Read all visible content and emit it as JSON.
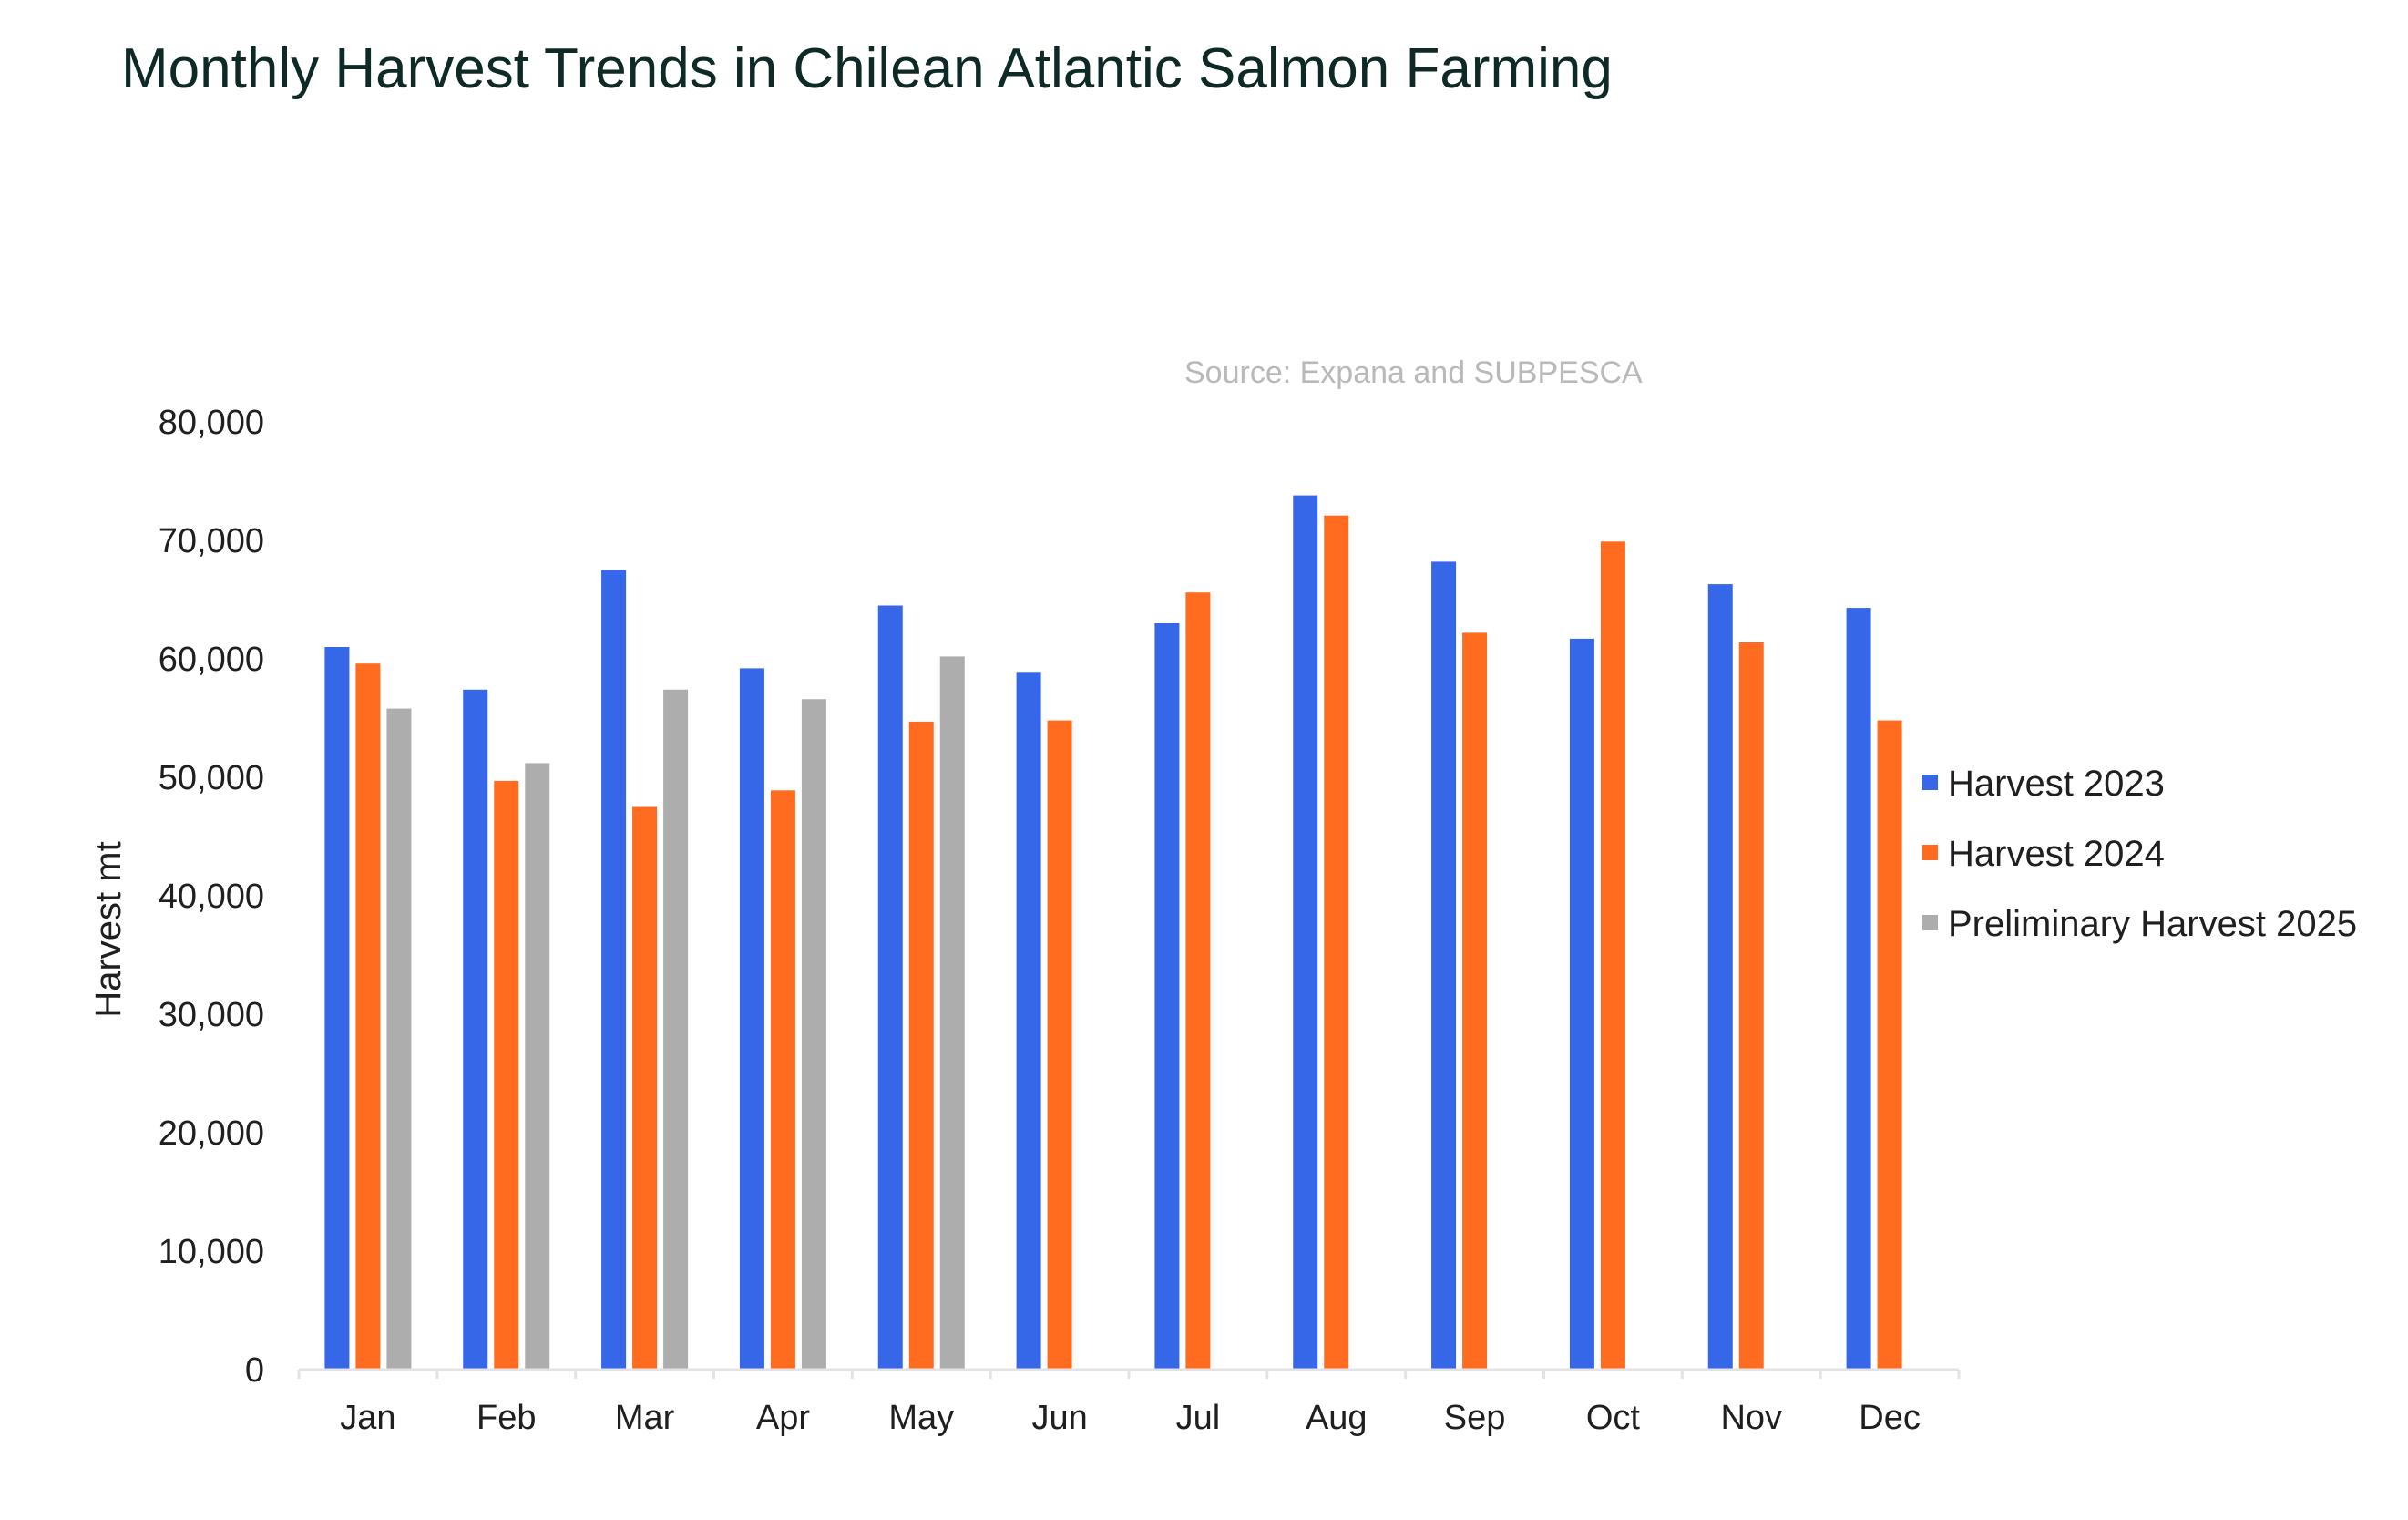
{
  "title": "Monthly Harvest Trends in Chilean Atlantic Salmon Farming",
  "chart_data": {
    "type": "bar",
    "title": "Monthly Harvest Trends in Chilean Atlantic Salmon Farming",
    "subtitle": "Source: Expana and SUBPESCA",
    "xlabel": "",
    "ylabel": "Harvest  mt",
    "ylim": [
      0,
      80000
    ],
    "yticks": [
      0,
      10000,
      20000,
      30000,
      40000,
      50000,
      60000,
      70000,
      80000
    ],
    "ytick_labels": [
      "0",
      "10,000",
      "20,000",
      "30,000",
      "40,000",
      "50,000",
      "60,000",
      "70,000",
      "80,000"
    ],
    "grid": false,
    "legend_position": "right",
    "categories": [
      "Jan",
      "Feb",
      "Mar",
      "Apr",
      "May",
      "Jun",
      "Jul",
      "Aug",
      "Sep",
      "Oct",
      "Nov",
      "Dec"
    ],
    "series": [
      {
        "name": "Harvest 2023",
        "color": "#3567e8",
        "values": [
          61000,
          57400,
          67500,
          59200,
          64500,
          58900,
          63000,
          73800,
          68200,
          61700,
          66300,
          64300
        ]
      },
      {
        "name": "Harvest 2024",
        "color": "#ff6b1f",
        "values": [
          59600,
          49700,
          47500,
          48900,
          54700,
          54800,
          65600,
          72100,
          62200,
          69900,
          61400,
          54800
        ]
      },
      {
        "name": "Preliminary Harvest  2025",
        "color": "#adadad",
        "values": [
          55800,
          51200,
          57400,
          56600,
          60200,
          null,
          null,
          null,
          null,
          null,
          null,
          null
        ]
      }
    ]
  }
}
